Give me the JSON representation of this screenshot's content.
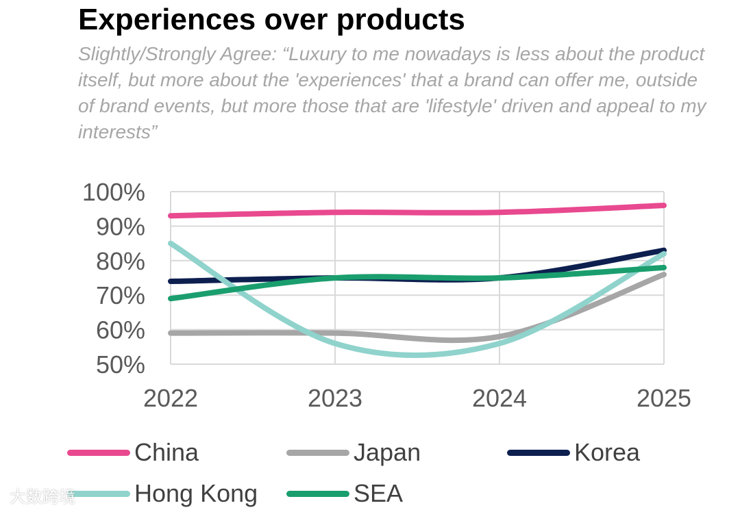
{
  "chart_data": {
    "type": "line",
    "title": "Experiences over products",
    "subtitle": "Slightly/Strongly Agree: “Luxury to me nowadays is less about the product itself, but more about the 'experiences' that a brand can offer me, outside of brand events, but more those that are 'lifestyle' driven and appeal to my interests”",
    "x": [
      "2022",
      "2023",
      "2024",
      "2025"
    ],
    "ylim": [
      50,
      100
    ],
    "yticks": [
      "50%",
      "60%",
      "70%",
      "80%",
      "90%",
      "100%"
    ],
    "grid": true,
    "legend_position": "bottom",
    "series": [
      {
        "name": "China",
        "color": "#e8498f",
        "values": [
          93,
          94,
          94,
          96
        ]
      },
      {
        "name": "Japan",
        "color": "#a6a6a6",
        "values": [
          59,
          59,
          58,
          76
        ]
      },
      {
        "name": "Korea",
        "color": "#0d1f4f",
        "values": [
          74,
          75,
          75,
          83
        ]
      },
      {
        "name": "Hong Kong",
        "color": "#8fd3cc",
        "values": [
          85,
          56,
          56,
          82
        ]
      },
      {
        "name": "SEA",
        "color": "#1a9e6e",
        "values": [
          69,
          75,
          75,
          78
        ]
      }
    ]
  },
  "watermark": "大数跨境"
}
